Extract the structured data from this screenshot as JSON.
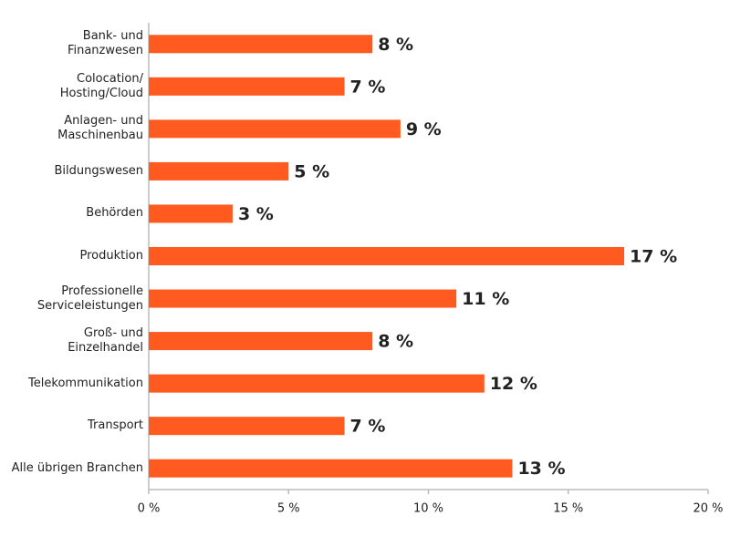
{
  "chart_data": {
    "type": "bar",
    "orientation": "horizontal",
    "categories": [
      "Bank- und\nFinanzwesen",
      "Colocation/\nHosting/Cloud",
      "Anlagen- und\nMaschinenbau",
      "Bildungswesen",
      "Behörden",
      "Produktion",
      "Professionelle\nServiceleistungen",
      "Groß- und\nEinzelhandel",
      "Telekommunikation",
      "Transport",
      "Alle übrigen Branchen"
    ],
    "values": [
      8,
      7,
      9,
      5,
      3,
      17,
      11,
      8,
      12,
      7,
      13
    ],
    "value_labels": [
      "8 %",
      "7 %",
      "9 %",
      "5 %",
      "3 %",
      "17 %",
      "11 %",
      "8 %",
      "12 %",
      "7 %",
      "13 %"
    ],
    "color": "#ff5a1f",
    "xlim": [
      0,
      20
    ],
    "xticks": [
      {
        "value": 0,
        "label": "0 %"
      },
      {
        "value": 5,
        "label": "5 %"
      },
      {
        "value": 10,
        "label": "10 %"
      },
      {
        "value": 15,
        "label": "15 %"
      },
      {
        "value": 20,
        "label": "20 %"
      }
    ],
    "grid": false
  }
}
